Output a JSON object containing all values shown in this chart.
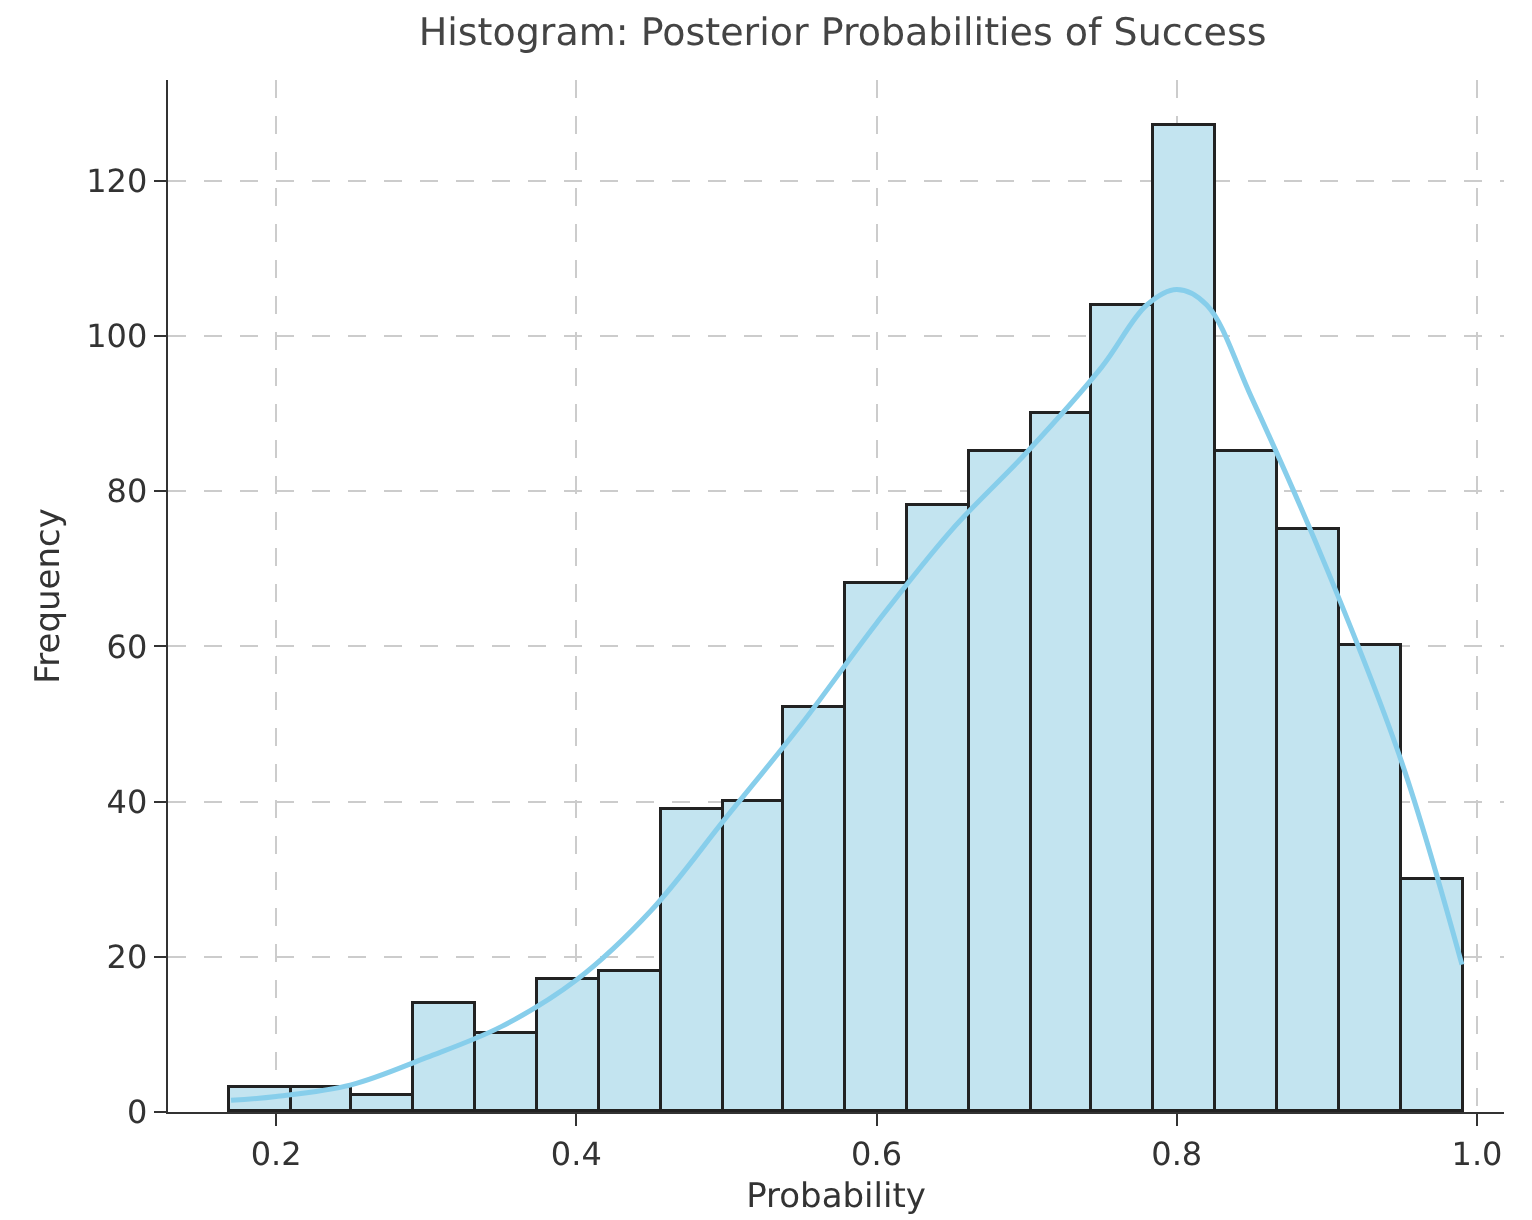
{
  "chart_data": {
    "type": "histogram",
    "title": "Histogram: Posterior Probabilities of Success",
    "xlabel": "Probability",
    "ylabel": "Frequency",
    "bins": [
      0.169,
      0.21,
      0.251,
      0.292,
      0.333,
      0.374,
      0.416,
      0.457,
      0.498,
      0.539,
      0.58,
      0.621,
      0.662,
      0.703,
      0.744,
      0.785,
      0.826,
      0.868,
      0.909,
      0.95,
      0.991
    ],
    "values": [
      3,
      3,
      2,
      14,
      10,
      17,
      18,
      39,
      40,
      52,
      68,
      78,
      85,
      90,
      104,
      127,
      85,
      75,
      60,
      30
    ],
    "color": "#c3e4f0",
    "series": [
      {
        "type": "line",
        "color": "#87ceeb",
        "x": [
          0.17,
          0.2,
          0.25,
          0.3,
          0.35,
          0.4,
          0.45,
          0.5,
          0.55,
          0.6,
          0.65,
          0.7,
          0.75,
          0.78,
          0.8,
          0.82,
          0.85,
          0.9,
          0.95,
          0.99
        ],
        "values": [
          1.5,
          2,
          3.5,
          7,
          11,
          17,
          26,
          38,
          50,
          63,
          75,
          85,
          96,
          104,
          106,
          104,
          92,
          70,
          45,
          19
        ]
      }
    ],
    "xlim": [
      0.128,
      1.018
    ],
    "xticks": [
      {
        "value": 0.2,
        "label": "0.2"
      },
      {
        "value": 0.4,
        "label": "0.4"
      },
      {
        "value": 0.6,
        "label": "0.6"
      },
      {
        "value": 0.8,
        "label": "0.8"
      },
      {
        "value": 1,
        "label": "1.0"
      }
    ],
    "ylim": [
      0,
      133
    ],
    "yticks": [
      0,
      20,
      40,
      60,
      80,
      100,
      120
    ],
    "grid": true
  }
}
